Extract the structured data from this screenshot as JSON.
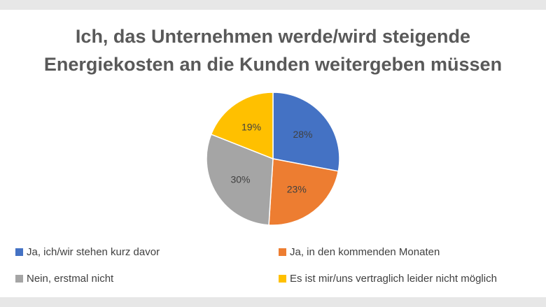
{
  "title_lines": [
    "Ich, das Unternehmen werde/wird steigende",
    "Energiekosten an die Kunden weitergeben müssen"
  ],
  "chart_data": {
    "type": "pie",
    "title": "Ich, das Unternehmen werde/wird steigende Energiekosten an die Kunden weitergeben müssen",
    "categories": [
      "Ja, ich/wir stehen kurz davor",
      "Ja, in den kommenden Monaten",
      "Nein, erstmal nicht",
      "Es ist mir/uns vertraglich leider nicht möglich"
    ],
    "values": [
      28,
      23,
      30,
      19
    ],
    "labels": [
      "28%",
      "23%",
      "30%",
      "19%"
    ],
    "colors": [
      "#4472c4",
      "#ed7d31",
      "#a5a5a5",
      "#ffc000"
    ],
    "legend_position": "bottom"
  }
}
